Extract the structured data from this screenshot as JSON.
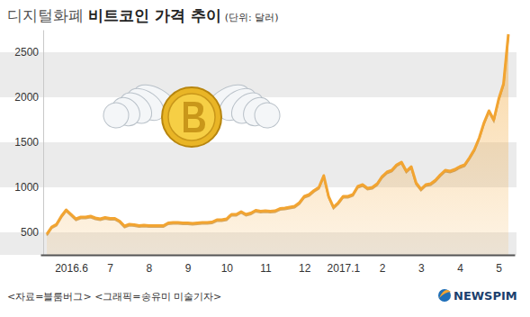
{
  "chart_data": {
    "type": "area",
    "supertitle": "디지털화폐",
    "title": "비트코인 가격 추이",
    "unit_note": "(단위: 달러)",
    "source": "<자료=블룸버그>",
    "credit": "<그래픽=송유미 미술기자>",
    "logo": "NEWSPIM",
    "color": "#f2a431",
    "grid": true,
    "ylim": [
      250,
      2750
    ],
    "yticks": [
      500,
      1000,
      1500,
      2000,
      2500
    ],
    "categories": [
      null,
      null,
      null,
      null,
      null,
      "2016.6",
      null,
      null,
      null,
      null,
      null,
      null,
      null,
      "7",
      null,
      null,
      null,
      null,
      null,
      null,
      null,
      "8",
      null,
      null,
      null,
      null,
      null,
      null,
      null,
      "9",
      null,
      null,
      null,
      null,
      null,
      null,
      null,
      "10",
      null,
      null,
      null,
      null,
      null,
      null,
      null,
      "11",
      null,
      null,
      null,
      null,
      null,
      null,
      null,
      "12",
      null,
      null,
      null,
      null,
      null,
      null,
      null,
      "2017.1",
      null,
      null,
      null,
      null,
      null,
      null,
      null,
      "2",
      null,
      null,
      null,
      null,
      null,
      null,
      null,
      "3",
      null,
      null,
      null,
      null,
      null,
      null,
      null,
      "4",
      null,
      null,
      null,
      null,
      null,
      null,
      null,
      "5",
      null,
      null
    ],
    "values": [
      480,
      560,
      590,
      680,
      750,
      700,
      650,
      670,
      670,
      680,
      660,
      650,
      665,
      655,
      655,
      625,
      570,
      590,
      585,
      575,
      580,
      575,
      575,
      575,
      575,
      605,
      610,
      610,
      605,
      605,
      600,
      605,
      610,
      610,
      615,
      640,
      640,
      650,
      700,
      700,
      730,
      700,
      715,
      745,
      735,
      740,
      735,
      740,
      765,
      770,
      780,
      790,
      830,
      900,
      920,
      965,
      1000,
      1130,
      900,
      780,
      830,
      900,
      900,
      920,
      1010,
      1030,
      990,
      1000,
      1040,
      1120,
      1170,
      1190,
      1250,
      1280,
      1180,
      1230,
      1050,
      980,
      1030,
      1040,
      1080,
      1140,
      1190,
      1180,
      1200,
      1230,
      1250,
      1330,
      1420,
      1550,
      1720,
      1850,
      1750,
      1980,
      2150,
      2700
    ]
  }
}
